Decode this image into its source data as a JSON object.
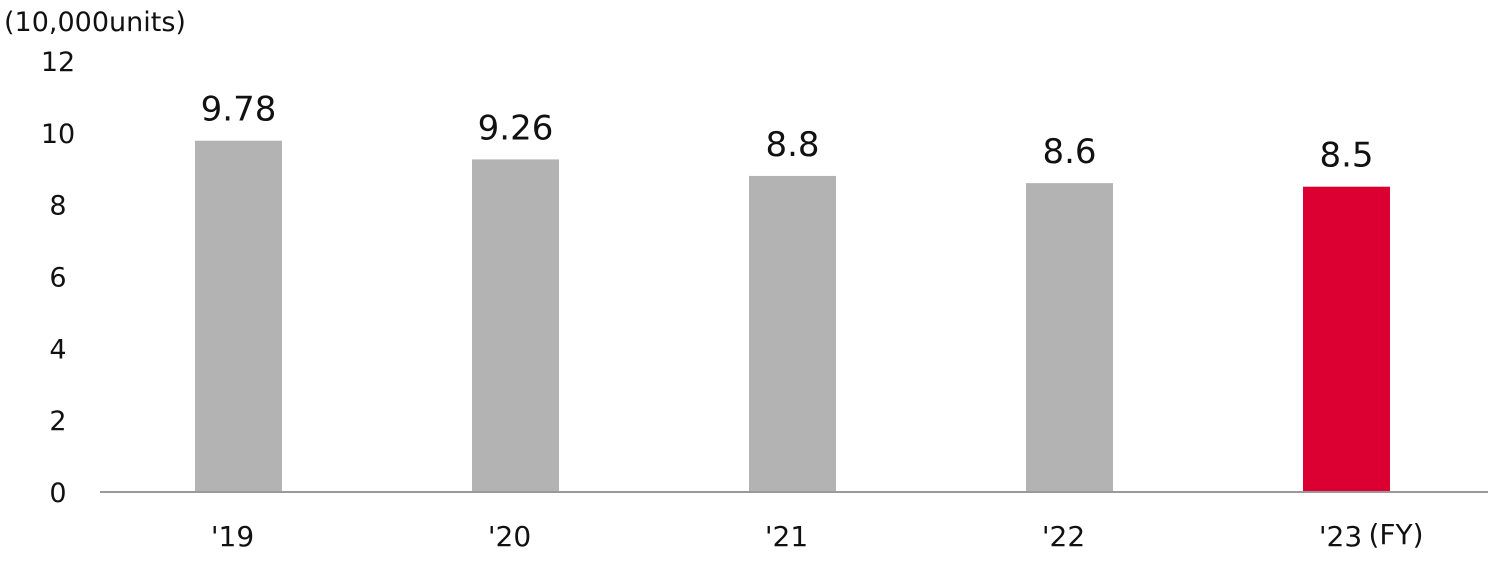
{
  "chart_data": {
    "type": "bar",
    "unit_label": "(10,000units)",
    "categories": [
      "'19",
      "'20",
      "'21",
      "'22",
      "'23"
    ],
    "x_suffix": "(FY)",
    "values": [
      9.78,
      9.26,
      8.8,
      8.6,
      8.5
    ],
    "value_labels": [
      "9.78",
      "9.26",
      "8.8",
      "8.6",
      "8.5"
    ],
    "ylim": [
      0,
      12
    ],
    "yticks": [
      "0",
      "2",
      "4",
      "6",
      "8",
      "10",
      "12"
    ],
    "grid": false,
    "colors": {
      "default": "#b3b3b3",
      "highlight": "#dc0032",
      "axis": "#999999"
    },
    "highlight_index": 4
  }
}
